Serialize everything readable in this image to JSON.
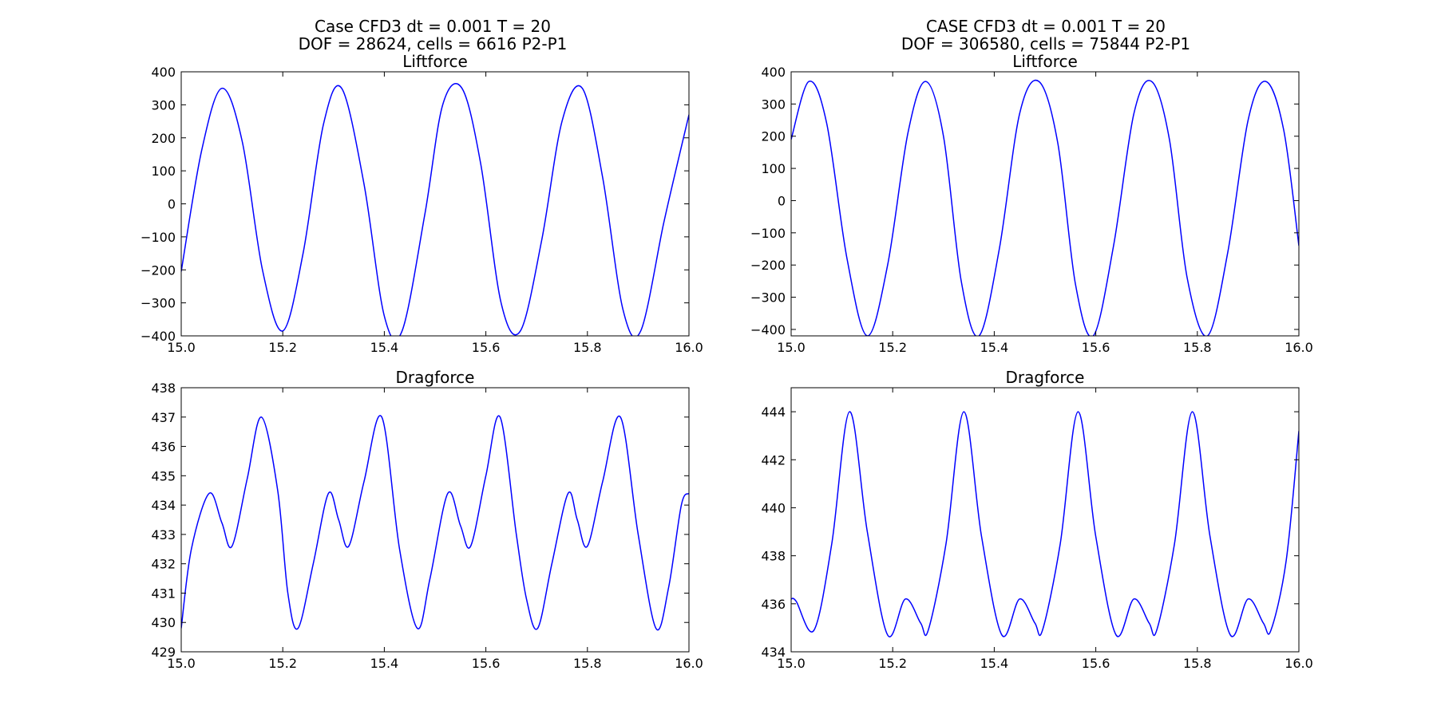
{
  "figure": {
    "left_title": [
      "Case CFD3 dt = 0.001 T = 20",
      "DOF = 28624,  cells = 6616  P2-P1"
    ],
    "right_title": [
      "CASE CFD3 dt = 0.001 T = 20",
      "DOF = 306580,  cells = 75844  P2-P1"
    ]
  },
  "line_color": "#0000ff",
  "chart_data": [
    {
      "type": "line",
      "title": "Liftforce",
      "xlim": [
        15.0,
        16.0
      ],
      "ylim": [
        -400,
        400
      ],
      "xticks": [
        15.0,
        15.2,
        15.4,
        15.6,
        15.8,
        16.0
      ],
      "xtick_labels": [
        "15.0",
        "15.2",
        "15.4",
        "15.6",
        "15.8",
        "16.0"
      ],
      "yticks": [
        -400,
        -300,
        -200,
        -100,
        0,
        100,
        200,
        300,
        400
      ],
      "ytick_labels": [
        "−400",
        "−300",
        "−200",
        "−100",
        "0",
        "100",
        "200",
        "300",
        "400"
      ],
      "x": [
        15.0,
        15.04,
        15.08,
        15.12,
        15.16,
        15.2,
        15.24,
        15.28,
        15.316,
        15.36,
        15.4,
        15.435,
        15.48,
        15.515,
        15.553,
        15.59,
        15.63,
        15.668,
        15.71,
        15.75,
        15.79,
        15.83,
        15.87,
        15.905,
        15.95,
        15.98,
        16.0
      ],
      "y": [
        -205,
        160,
        350,
        190,
        -200,
        -385,
        -150,
        240,
        350,
        60,
        -340,
        -385,
        -30,
        300,
        350,
        120,
        -300,
        -385,
        -110,
        250,
        350,
        80,
        -320,
        -385,
        -60,
        140,
        270
      ]
    },
    {
      "type": "line",
      "title": "Dragforce",
      "xlim": [
        15.0,
        16.0
      ],
      "ylim": [
        429,
        438
      ],
      "xticks": [
        15.0,
        15.2,
        15.4,
        15.6,
        15.8,
        16.0
      ],
      "xtick_labels": [
        "15.0",
        "15.2",
        "15.4",
        "15.6",
        "15.8",
        "16.0"
      ],
      "yticks": [
        429,
        430,
        431,
        432,
        433,
        434,
        435,
        436,
        437,
        438
      ],
      "ytick_labels": [
        "429",
        "430",
        "431",
        "432",
        "433",
        "434",
        "435",
        "436",
        "437",
        "438"
      ],
      "x": [
        15.0,
        15.02,
        15.055,
        15.08,
        15.1,
        15.13,
        15.158,
        15.19,
        15.21,
        15.23,
        15.26,
        15.29,
        15.31,
        15.33,
        15.36,
        15.395,
        15.43,
        15.465,
        15.49,
        15.525,
        15.55,
        15.57,
        15.6,
        15.628,
        15.66,
        15.68,
        15.702,
        15.73,
        15.762,
        15.78,
        15.8,
        15.83,
        15.865,
        15.9,
        15.935,
        15.96,
        15.985,
        16.0
      ],
      "y": [
        429.8,
        432.5,
        434.4,
        433.4,
        432.6,
        434.9,
        437.0,
        434.5,
        431.0,
        429.8,
        432.0,
        434.4,
        433.5,
        432.6,
        434.8,
        437.0,
        432.5,
        429.8,
        431.5,
        434.4,
        433.3,
        432.6,
        435.0,
        437.0,
        433.0,
        430.8,
        429.8,
        432.0,
        434.4,
        433.5,
        432.6,
        434.8,
        437.0,
        433.0,
        429.8,
        431.2,
        434.0,
        434.4
      ]
    },
    {
      "type": "line",
      "title": "Liftforce",
      "xlim": [
        15.0,
        16.0
      ],
      "ylim": [
        -420,
        400
      ],
      "xticks": [
        15.0,
        15.2,
        15.4,
        15.6,
        15.8,
        16.0
      ],
      "xtick_labels": [
        "15.0",
        "15.2",
        "15.4",
        "15.6",
        "15.8",
        "16.0"
      ],
      "yticks": [
        -400,
        -300,
        -200,
        -100,
        0,
        100,
        200,
        300,
        400
      ],
      "ytick_labels": [
        "−400",
        "−300",
        "−200",
        "−100",
        "0",
        "100",
        "200",
        "300",
        "400"
      ],
      "x": [
        15.0,
        15.035,
        15.07,
        15.11,
        15.15,
        15.19,
        15.23,
        15.265,
        15.3,
        15.335,
        15.37,
        15.41,
        15.45,
        15.488,
        15.525,
        15.56,
        15.595,
        15.635,
        15.675,
        15.71,
        15.745,
        15.78,
        15.82,
        15.86,
        15.9,
        15.935,
        15.97,
        16.0
      ],
      "y": [
        190,
        370,
        240,
        -180,
        -420,
        -200,
        210,
        370,
        200,
        -250,
        -420,
        -150,
        270,
        370,
        180,
        -260,
        -420,
        -140,
        270,
        370,
        190,
        -240,
        -420,
        -160,
        250,
        370,
        220,
        -140
      ]
    },
    {
      "type": "line",
      "title": "Dragforce",
      "xlim": [
        15.0,
        16.0
      ],
      "ylim": [
        434,
        445
      ],
      "xticks": [
        15.0,
        15.2,
        15.4,
        15.6,
        15.8,
        16.0
      ],
      "xtick_labels": [
        "15.0",
        "15.2",
        "15.4",
        "15.6",
        "15.8",
        "16.0"
      ],
      "yticks": [
        434,
        436,
        438,
        440,
        442,
        444
      ],
      "ytick_labels": [
        "434",
        "436",
        "438",
        "440",
        "442",
        "444"
      ],
      "x": [
        15.0,
        15.01,
        15.045,
        15.08,
        15.115,
        15.15,
        15.19,
        15.225,
        15.255,
        15.27,
        15.305,
        15.34,
        15.375,
        15.415,
        15.45,
        15.48,
        15.495,
        15.53,
        15.565,
        15.6,
        15.64,
        15.675,
        15.705,
        15.72,
        15.755,
        15.79,
        15.825,
        15.865,
        15.9,
        15.93,
        15.945,
        15.975,
        16.0
      ],
      "y": [
        436.2,
        436.1,
        434.9,
        438.5,
        444.0,
        439.0,
        434.7,
        436.2,
        435.2,
        434.9,
        438.5,
        444.0,
        438.8,
        434.7,
        436.2,
        435.2,
        434.9,
        438.5,
        444.0,
        438.8,
        434.7,
        436.2,
        435.2,
        434.9,
        438.5,
        444.0,
        438.8,
        434.7,
        436.2,
        435.2,
        434.9,
        437.8,
        443.2
      ]
    }
  ]
}
